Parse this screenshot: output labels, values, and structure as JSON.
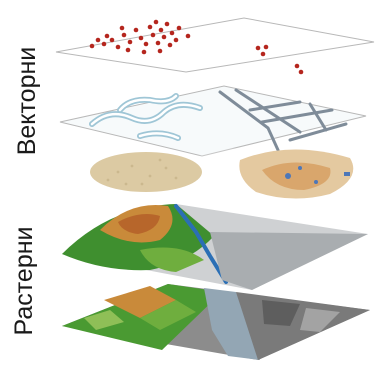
{
  "labels": {
    "vector": "Векторни",
    "raster": "Растерни"
  },
  "colors": {
    "points": "#b5261e",
    "roads": "#7f8c99",
    "water": "#9fc6d6",
    "sand": "#dccaa3",
    "terrain_green": "#3f8f2f",
    "terrain_orange": "#c98a3a",
    "rock_gray": "#9a9a9a",
    "river_blue": "#2b6fb5"
  }
}
